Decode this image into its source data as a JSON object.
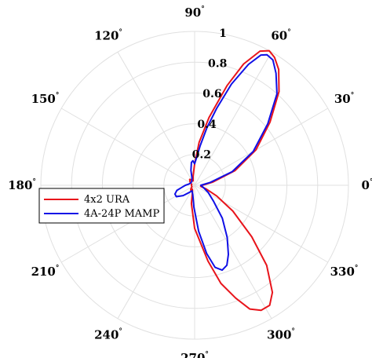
{
  "chart_data": {
    "type": "line",
    "coordinate_system": "polar",
    "title": "",
    "angle_unit": "deg",
    "angle_ticks": [
      0,
      30,
      60,
      90,
      120,
      150,
      180,
      210,
      240,
      270,
      300,
      330
    ],
    "angle_tick_labels": [
      "0",
      "30",
      "60",
      "90",
      "120",
      "150",
      "180",
      "210",
      "240",
      "270",
      "300",
      "330"
    ],
    "r_lim": [
      0,
      1
    ],
    "r_ticks": [
      0.2,
      0.4,
      0.6,
      0.8,
      1
    ],
    "r_tick_labels": [
      "0.2",
      "0.4",
      "0.6",
      "0.8",
      "1"
    ],
    "r_tick_label_angle_deg": 80,
    "grid": true,
    "legend_location": "west",
    "series": [
      {
        "name": "4x2 URA",
        "color": "#e8141b",
        "points": [
          [
            0,
            0.05
          ],
          [
            10,
            0.12
          ],
          [
            20,
            0.28
          ],
          [
            30,
            0.46
          ],
          [
            40,
            0.64
          ],
          [
            48,
            0.82
          ],
          [
            54,
            0.93
          ],
          [
            58,
            0.98
          ],
          [
            61,
            1.0
          ],
          [
            64,
            0.97
          ],
          [
            68,
            0.85
          ],
          [
            72,
            0.68
          ],
          [
            78,
            0.45
          ],
          [
            84,
            0.28
          ],
          [
            90,
            0.14
          ],
          [
            100,
            0.06
          ],
          [
            110,
            0.03
          ],
          [
            120,
            0.04
          ],
          [
            130,
            0.05
          ],
          [
            140,
            0.04
          ],
          [
            150,
            0.03
          ],
          [
            160,
            0.02
          ],
          [
            170,
            0.02
          ],
          [
            180,
            0.02
          ],
          [
            190,
            0.02
          ],
          [
            200,
            0.02
          ],
          [
            210,
            0.02
          ],
          [
            220,
            0.03
          ],
          [
            230,
            0.04
          ],
          [
            240,
            0.03
          ],
          [
            250,
            0.04
          ],
          [
            260,
            0.12
          ],
          [
            270,
            0.28
          ],
          [
            280,
            0.5
          ],
          [
            285,
            0.66
          ],
          [
            290,
            0.78
          ],
          [
            294,
            0.88
          ],
          [
            298,
            0.92
          ],
          [
            302,
            0.92
          ],
          [
            306,
            0.86
          ],
          [
            312,
            0.7
          ],
          [
            318,
            0.5
          ],
          [
            326,
            0.3
          ],
          [
            334,
            0.16
          ],
          [
            342,
            0.08
          ],
          [
            350,
            0.04
          ],
          [
            360,
            0.05
          ]
        ]
      },
      {
        "name": "4A-24P MAMP",
        "color": "#1010e6",
        "points": [
          [
            0,
            0.04
          ],
          [
            10,
            0.1
          ],
          [
            20,
            0.26
          ],
          [
            30,
            0.44
          ],
          [
            40,
            0.62
          ],
          [
            48,
            0.8
          ],
          [
            54,
            0.9
          ],
          [
            58,
            0.96
          ],
          [
            61,
            0.97
          ],
          [
            63,
            0.95
          ],
          [
            66,
            0.86
          ],
          [
            70,
            0.7
          ],
          [
            74,
            0.52
          ],
          [
            78,
            0.38
          ],
          [
            82,
            0.26
          ],
          [
            86,
            0.18
          ],
          [
            90,
            0.14
          ],
          [
            94,
            0.16
          ],
          [
            98,
            0.15
          ],
          [
            104,
            0.1
          ],
          [
            110,
            0.05
          ],
          [
            130,
            0.03
          ],
          [
            150,
            0.03
          ],
          [
            170,
            0.04
          ],
          [
            180,
            0.06
          ],
          [
            188,
            0.08
          ],
          [
            196,
            0.12
          ],
          [
            204,
            0.14
          ],
          [
            212,
            0.14
          ],
          [
            222,
            0.1
          ],
          [
            232,
            0.06
          ],
          [
            245,
            0.04
          ],
          [
            258,
            0.06
          ],
          [
            268,
            0.14
          ],
          [
            275,
            0.3
          ],
          [
            280,
            0.45
          ],
          [
            284,
            0.55
          ],
          [
            288,
            0.58
          ],
          [
            292,
            0.56
          ],
          [
            296,
            0.5
          ],
          [
            302,
            0.4
          ],
          [
            310,
            0.28
          ],
          [
            320,
            0.16
          ],
          [
            332,
            0.1
          ],
          [
            345,
            0.06
          ],
          [
            360,
            0.04
          ]
        ]
      }
    ]
  }
}
